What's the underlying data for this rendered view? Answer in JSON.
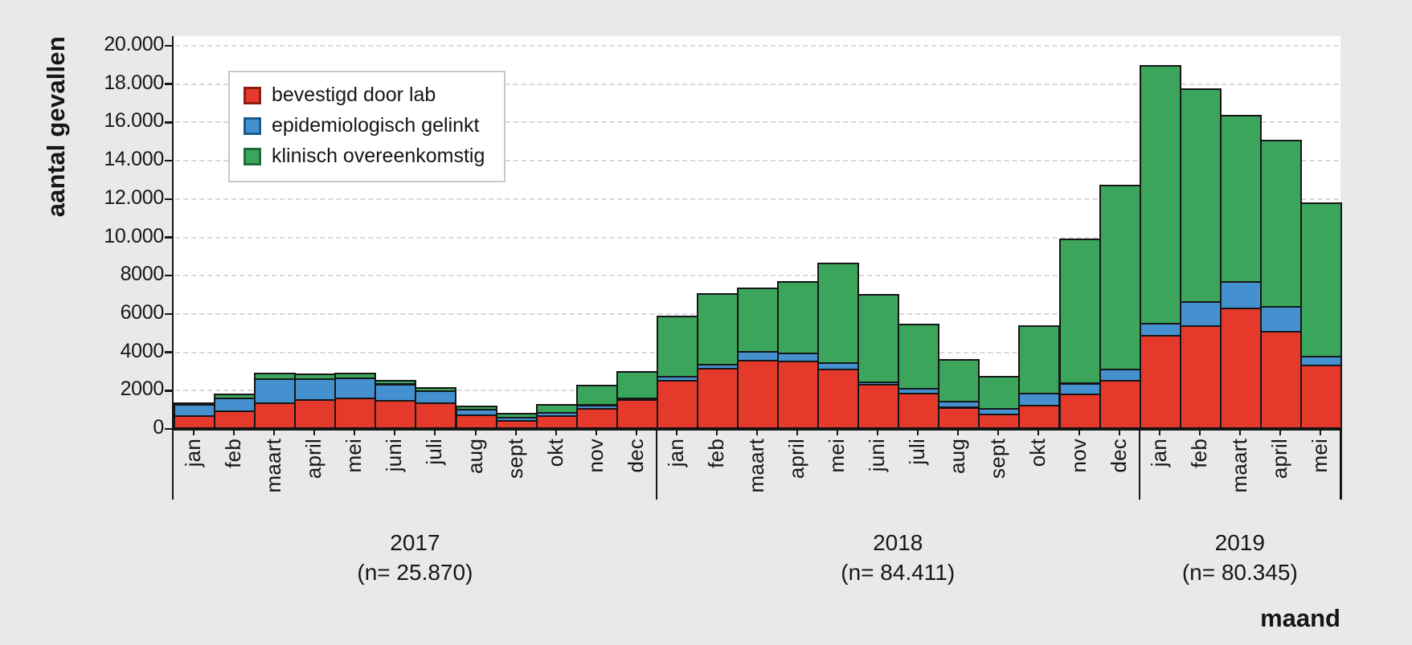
{
  "chart_data": {
    "type": "bar",
    "stacked": true,
    "title": "",
    "ylabel": "aantal gevallen",
    "xlabel": "maand",
    "ylim": [
      0,
      20000
    ],
    "ytick_step": 2000,
    "grid": "dashed-horizontal",
    "legend_position": "top-left-inside",
    "y_tick_labels": [
      "0",
      "2000",
      "4000",
      "6000",
      "8000",
      "10.000",
      "12.000",
      "14.000",
      "16.000",
      "18.000",
      "20.000"
    ],
    "groups": [
      {
        "year": "2017",
        "n_label": "(n= 25.870)",
        "months": [
          "jan",
          "feb",
          "maart",
          "april",
          "mei",
          "juni",
          "juli",
          "aug",
          "sept",
          "okt",
          "nov",
          "dec"
        ]
      },
      {
        "year": "2018",
        "n_label": "(n= 84.411)",
        "months": [
          "jan",
          "feb",
          "maart",
          "april",
          "mei",
          "juni",
          "juli",
          "aug",
          "sept",
          "okt",
          "nov",
          "dec"
        ]
      },
      {
        "year": "2019",
        "n_label": "(n= 80.345)",
        "months": [
          "jan",
          "feb",
          "maart",
          "april",
          "mei"
        ]
      }
    ],
    "series": [
      {
        "name": "bevestigd door lab",
        "color": "#e5392b",
        "edge": "#8c1f12",
        "values": [
          700,
          950,
          1400,
          1550,
          1650,
          1500,
          1400,
          750,
          470,
          700,
          1100,
          1550,
          2550,
          3200,
          3600,
          3550,
          3150,
          2350,
          1900,
          1150,
          800,
          1250,
          1850,
          2550,
          4900,
          5400,
          6350,
          5100,
          3350
        ]
      },
      {
        "name": "epidemiologisch gelinkt",
        "color": "#4591cf",
        "edge": "#1d5a8c",
        "values": [
          650,
          700,
          1250,
          1100,
          1050,
          870,
          600,
          280,
          150,
          170,
          180,
          80,
          200,
          200,
          450,
          420,
          330,
          120,
          250,
          320,
          280,
          650,
          560,
          600,
          650,
          1250,
          1350,
          1300,
          480
        ]
      },
      {
        "name": "klinisch overeenkomstig",
        "color": "#3ba55c",
        "edge": "#1f6b38",
        "values": [
          50,
          200,
          300,
          250,
          220,
          180,
          200,
          180,
          200,
          440,
          1040,
          1370,
          3150,
          3700,
          3350,
          3730,
          5220,
          4580,
          3350,
          2180,
          1670,
          3500,
          7540,
          9600,
          13450,
          11150,
          8700,
          8700,
          8000
        ]
      }
    ]
  }
}
